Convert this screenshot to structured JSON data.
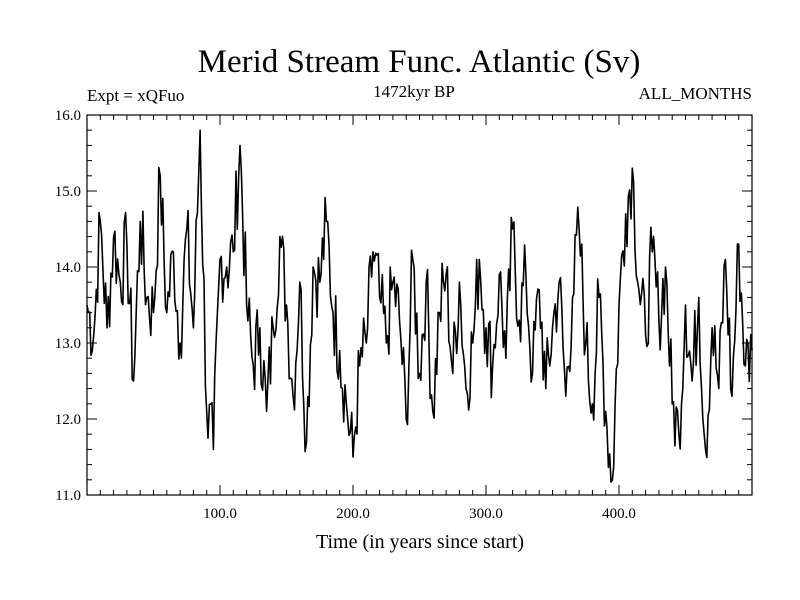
{
  "chart_data": {
    "type": "line",
    "title": "Merid Stream Func. Atlantic (Sv)",
    "subtitle_left": "Expt = xQFuo",
    "subtitle_center": "1472kyr BP",
    "subtitle_right": "ALL_MONTHS",
    "xlabel": "Time (in years since start)",
    "ylabel": "",
    "xlim": [
      0,
      500
    ],
    "ylim": [
      11.0,
      16.0
    ],
    "x_ticks": [
      100,
      200,
      300,
      400
    ],
    "x_tick_labels": [
      "100.0",
      "200.0",
      "300.0",
      "400.0"
    ],
    "y_ticks": [
      11,
      12,
      13,
      14,
      15,
      16
    ],
    "y_tick_labels": [
      "11.0",
      "12.0",
      "13.0",
      "14.0",
      "15.0",
      "16.0"
    ],
    "series": [
      {
        "name": "Merid Stream Func. Atlantic",
        "x": [
          0,
          5,
          10,
          15,
          20,
          25,
          30,
          35,
          40,
          45,
          50,
          55,
          60,
          65,
          70,
          75,
          80,
          85,
          90,
          95,
          100,
          105,
          110,
          115,
          120,
          125,
          130,
          135,
          140,
          145,
          150,
          155,
          160,
          165,
          170,
          175,
          180,
          185,
          190,
          195,
          200,
          205,
          210,
          215,
          220,
          225,
          230,
          235,
          240,
          245,
          250,
          255,
          260,
          265,
          270,
          275,
          280,
          285,
          290,
          295,
          300,
          305,
          310,
          315,
          320,
          325,
          330,
          335,
          340,
          345,
          350,
          355,
          360,
          365,
          370,
          375,
          380,
          385,
          390,
          395,
          400,
          405,
          410,
          415,
          420,
          425,
          430,
          435,
          440,
          445,
          450,
          455,
          460,
          465,
          470,
          475,
          480,
          485,
          490,
          495,
          500
        ],
        "values": [
          13.5,
          13.1,
          14.6,
          13.2,
          14.4,
          13.8,
          14.3,
          12.5,
          14.6,
          13.6,
          13.4,
          15.2,
          13.4,
          14.2,
          13.0,
          14.5,
          13.2,
          15.8,
          12.1,
          11.6,
          14.1,
          14.0,
          14.2,
          15.6,
          13.5,
          12.7,
          13.2,
          12.1,
          13.2,
          14.4,
          13.5,
          12.3,
          13.8,
          11.7,
          14.0,
          13.8,
          14.6,
          13.4,
          12.9,
          12.2,
          11.5,
          12.7,
          13.0,
          14.2,
          13.6,
          13.0,
          13.8,
          13.3,
          12.0,
          14.1,
          12.6,
          13.8,
          12.1,
          13.4,
          13.9,
          12.6,
          13.8,
          12.4,
          13.0,
          14.1,
          13.2,
          12.7,
          13.9,
          12.8,
          14.5,
          13.3,
          13.9,
          12.6,
          13.7,
          12.4,
          13.2,
          13.8,
          12.3,
          13.6,
          14.5,
          13.0,
          12.2,
          13.6,
          12.1,
          11.2,
          13.5,
          14.7,
          15.3,
          13.7,
          13.1,
          14.2,
          13.3,
          14.0,
          12.2,
          11.8,
          13.5,
          12.5,
          13.6,
          11.6,
          13.2,
          12.4,
          14.1,
          12.3,
          14.3,
          12.7,
          12.9
        ]
      }
    ]
  }
}
